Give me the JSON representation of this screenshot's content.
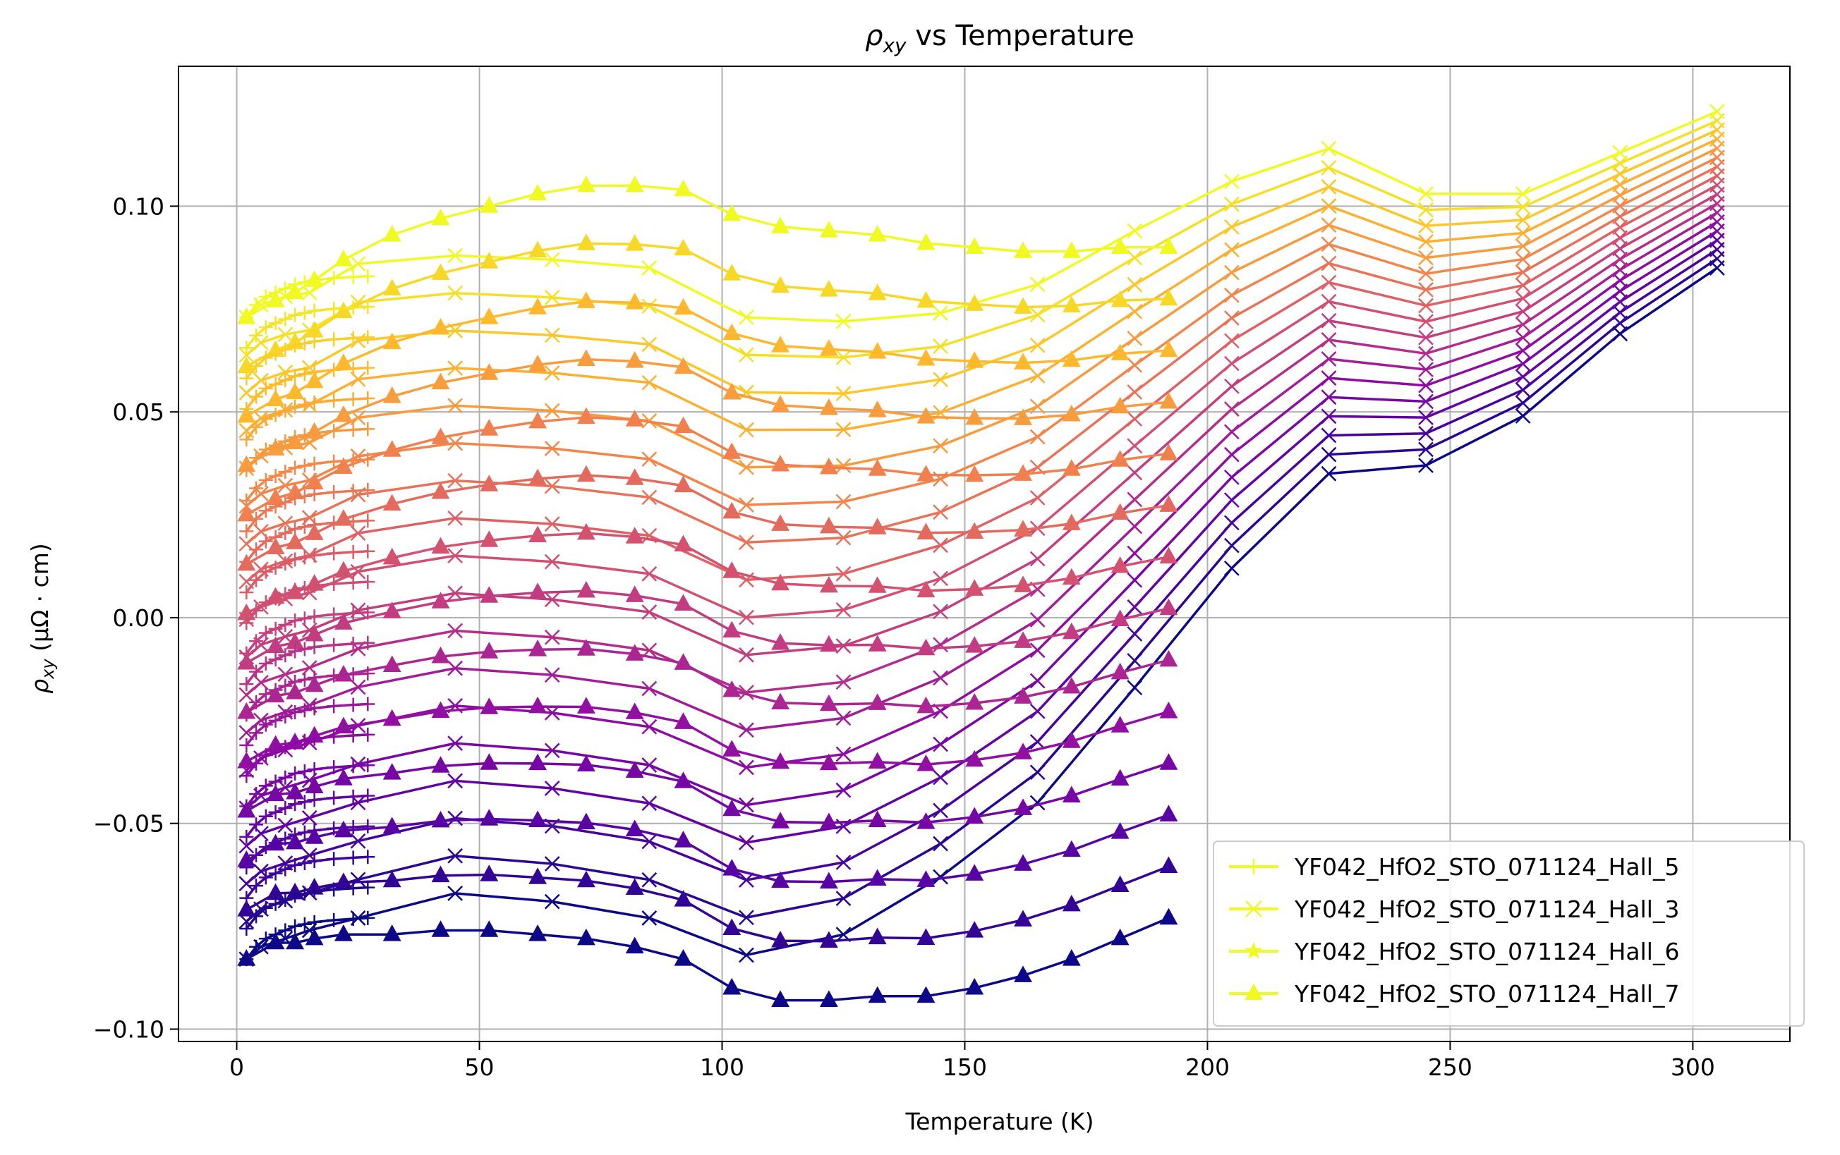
{
  "chart_data": {
    "type": "line",
    "title_main": "ρ",
    "title_sub": "xy",
    "title_rest": " vs Temperature",
    "xlabel": "Temperature (K)",
    "ylabel_main": "ρ",
    "ylabel_sub": "xy",
    "ylabel_unit": " (μΩ · cm)",
    "xlim": [
      -12,
      320
    ],
    "ylim": [
      -0.103,
      0.134
    ],
    "xticks": [
      0,
      50,
      100,
      150,
      200,
      250,
      300
    ],
    "xtick_labels": [
      "0",
      "50",
      "100",
      "150",
      "200",
      "250",
      "300"
    ],
    "yticks": [
      -0.1,
      -0.05,
      0.0,
      0.05,
      0.1
    ],
    "ytick_labels": [
      "−0.10",
      "−0.05",
      "0.00",
      "0.05",
      "0.10"
    ],
    "grid": true,
    "legend_position": "lower-right",
    "colormap": "plasma",
    "legend": [
      {
        "label": "YF042_HfO2_STO_071124_Hall_5",
        "marker": "plus"
      },
      {
        "label": "YF042_HfO2_STO_071124_Hall_3",
        "marker": "x"
      },
      {
        "label": "YF042_HfO2_STO_071124_Hall_6",
        "marker": "star"
      },
      {
        "label": "YF042_HfO2_STO_071124_Hall_7",
        "marker": "triangle"
      }
    ],
    "legend_color": "#f0f921",
    "series_groups": [
      {
        "name": "YF042_HfO2_STO_071124_Hall_5",
        "marker": "plus",
        "x": [
          2,
          4,
          6,
          8,
          10,
          12,
          14,
          16,
          20,
          24,
          27
        ],
        "base_shape": [
          0.0,
          0.003,
          0.005,
          0.006,
          0.007,
          0.008,
          0.0085,
          0.009,
          0.0095,
          0.0098,
          0.01
        ],
        "offsets_low": -0.083,
        "offsets_high": 0.073,
        "count": 22
      },
      {
        "name": "YF042_HfO2_STO_071124_Hall_3",
        "marker": "x",
        "x": [
          2,
          5,
          10,
          15,
          25,
          45,
          65,
          85,
          105,
          125,
          145,
          165,
          185,
          205,
          225,
          245,
          265,
          285,
          305
        ],
        "low": [
          -0.083,
          -0.08,
          -0.078,
          -0.076,
          -0.073,
          -0.067,
          -0.069,
          -0.073,
          -0.082,
          -0.077,
          -0.063,
          -0.045,
          -0.017,
          0.012,
          0.035,
          0.037,
          0.049,
          0.069,
          0.085
        ],
        "high": [
          0.073,
          0.076,
          0.078,
          0.079,
          0.086,
          0.088,
          0.087,
          0.085,
          0.073,
          0.072,
          0.074,
          0.081,
          0.094,
          0.106,
          0.114,
          0.103,
          0.103,
          0.113,
          0.123
        ],
        "count": 18
      },
      {
        "name": "YF042_HfO2_STO_071124_Hall_6",
        "marker": "star",
        "x": [
          2,
          4,
          6,
          8,
          10,
          12,
          14,
          16
        ],
        "count": 0
      },
      {
        "name": "YF042_HfO2_STO_071124_Hall_7",
        "marker": "triangle",
        "x": [
          2,
          8,
          12,
          16,
          22,
          32,
          42,
          52,
          62,
          72,
          82,
          92,
          102,
          112,
          122,
          132,
          142,
          152,
          162,
          172,
          182,
          192
        ],
        "low": [
          -0.083,
          -0.079,
          -0.079,
          -0.078,
          -0.077,
          -0.077,
          -0.076,
          -0.076,
          -0.077,
          -0.078,
          -0.08,
          -0.083,
          -0.09,
          -0.093,
          -0.093,
          -0.092,
          -0.092,
          -0.09,
          -0.087,
          -0.083,
          -0.078,
          -0.073
        ],
        "high": [
          0.073,
          0.077,
          0.079,
          0.082,
          0.087,
          0.093,
          0.097,
          0.1,
          0.103,
          0.105,
          0.105,
          0.104,
          0.098,
          0.095,
          0.094,
          0.093,
          0.091,
          0.09,
          0.089,
          0.089,
          0.09,
          0.09
        ],
        "count": 14
      }
    ]
  }
}
